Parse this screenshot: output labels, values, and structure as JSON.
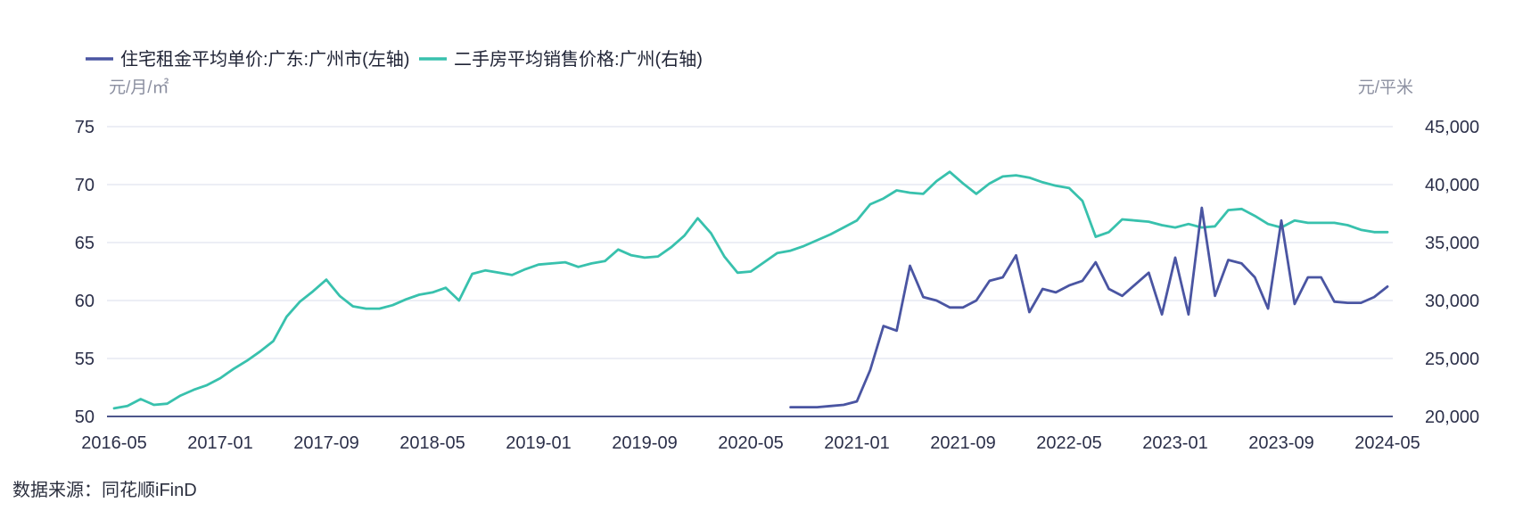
{
  "source": "数据来源：同花顺iFinD",
  "colors": {
    "rent_line": "#4a55a2",
    "price_line": "#38c1ad",
    "tick_text": "#2b2f49",
    "unit_text": "#8b8fa0",
    "gridline": "#eceef5",
    "axis_line": "#4d568b",
    "legend_text": "#1f2335",
    "source_text": "#2b2f3e"
  },
  "chart_data": {
    "type": "line",
    "title": "",
    "legend_position": "top-left",
    "grid": "horizontal-only",
    "x_start": "2016-05",
    "x_end": "2024-05",
    "x_tick_labels": [
      "2016-05",
      "2017-01",
      "2017-09",
      "2018-05",
      "2019-01",
      "2019-09",
      "2020-05",
      "2021-01",
      "2021-09",
      "2022-05",
      "2023-01",
      "2023-09",
      "2024-05"
    ],
    "left_axis": {
      "unit": "元/月/㎡",
      "min": 50,
      "max": 75,
      "ticks": [
        50,
        55,
        60,
        65,
        70,
        75
      ]
    },
    "right_axis": {
      "unit": "元/平米",
      "min": 20000,
      "max": 45000,
      "ticks": [
        20000,
        25000,
        30000,
        35000,
        40000,
        45000
      ],
      "tick_labels": [
        "20,000",
        "25,000",
        "30,000",
        "35,000",
        "40,000",
        "45,000"
      ]
    },
    "series": [
      {
        "name": "二手房平均销售价格:广州(右轴)",
        "axis": "right",
        "color": "#38c1ad",
        "start_month": "2016-05",
        "values": [
          20700,
          20900,
          21500,
          21000,
          21100,
          21800,
          22300,
          22700,
          23300,
          24100,
          24800,
          25600,
          26500,
          28600,
          29900,
          30800,
          31800,
          30400,
          29500,
          29300,
          29300,
          29600,
          30100,
          30500,
          30700,
          31100,
          30000,
          32300,
          32600,
          32400,
          32200,
          32700,
          33100,
          33200,
          33300,
          32900,
          33200,
          33400,
          34400,
          33900,
          33700,
          33800,
          34600,
          35600,
          37100,
          35800,
          33800,
          32400,
          32500,
          33300,
          34100,
          34300,
          34700,
          35200,
          35700,
          36300,
          36900,
          38300,
          38800,
          39500,
          39300,
          39200,
          40300,
          41100,
          40100,
          39200,
          40100,
          40700,
          40800,
          40600,
          40200,
          39900,
          39700,
          38600,
          35500,
          35900,
          37000,
          36900,
          36800,
          36500,
          36300,
          36600,
          36300,
          36400,
          37800,
          37900,
          37300,
          36600,
          36300,
          36900,
          36700,
          36700,
          36700,
          36500,
          36100,
          35900,
          35900
        ]
      },
      {
        "name": "住宅租金平均单价:广东:广州市(左轴)",
        "axis": "left",
        "color": "#4a55a2",
        "start_month": "2020-08",
        "values": [
          50.8,
          50.8,
          50.8,
          50.9,
          51.0,
          51.3,
          54.0,
          57.8,
          57.4,
          63.0,
          60.3,
          60.0,
          59.4,
          59.4,
          60.0,
          61.7,
          62.0,
          63.9,
          59.0,
          61.0,
          60.7,
          61.3,
          61.7,
          63.3,
          61.0,
          60.4,
          61.4,
          62.4,
          58.8,
          63.7,
          58.8,
          68.0,
          60.4,
          63.5,
          63.2,
          62.0,
          59.3,
          66.9,
          59.7,
          62.0,
          62.0,
          59.9,
          59.8,
          59.8,
          60.3,
          61.2
        ]
      }
    ]
  },
  "legend": {
    "items": [
      {
        "label": "住宅租金平均单价:广东:广州市(左轴)"
      },
      {
        "label": "二手房平均销售价格:广州(右轴)"
      }
    ]
  }
}
